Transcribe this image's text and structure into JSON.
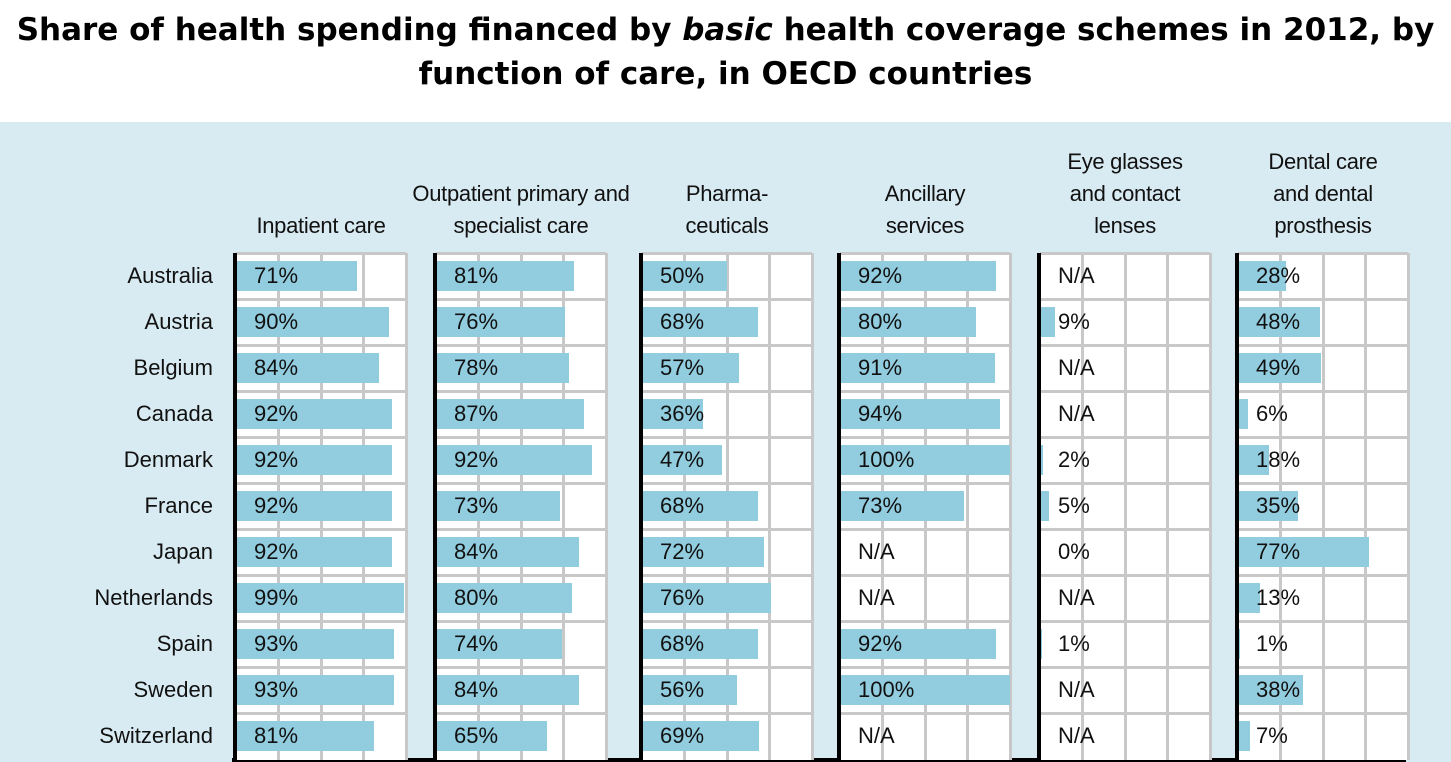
{
  "title": {
    "before": "Share of health spending financed by ",
    "emph": "basic",
    "after": " health coverage schemes in 2012, by function of care, in OECD countries"
  },
  "chart_data": {
    "type": "bar",
    "orientation": "horizontal",
    "title": "Share of health spending financed by basic health coverage schemes in 2012, by function of care, in OECD countries",
    "categories": [
      "Australia",
      "Austria",
      "Belgium",
      "Canada",
      "Denmark",
      "France",
      "Japan",
      "Netherlands",
      "Spain",
      "Sweden",
      "Switzerland"
    ],
    "na_label": "N/A",
    "unit": "%",
    "xlim": [
      0,
      100
    ],
    "grid": true,
    "bar_color": "#92cddf",
    "background_color": "#d9ebf2",
    "series": [
      {
        "name": "Inpatient care",
        "values": [
          71,
          90,
          84,
          92,
          92,
          92,
          92,
          99,
          93,
          93,
          81
        ]
      },
      {
        "name": "Outpatient primary and\nspecialist care",
        "values": [
          81,
          76,
          78,
          87,
          92,
          73,
          84,
          80,
          74,
          84,
          65
        ]
      },
      {
        "name": "Pharma-\nceuticals",
        "values": [
          50,
          68,
          57,
          36,
          47,
          68,
          72,
          76,
          68,
          56,
          69
        ]
      },
      {
        "name": "Ancillary\nservices",
        "values": [
          92,
          80,
          91,
          94,
          100,
          73,
          null,
          null,
          92,
          100,
          null
        ]
      },
      {
        "name": "Eye glasses\nand contact\nlenses",
        "values": [
          null,
          9,
          null,
          null,
          2,
          5,
          0,
          null,
          1,
          null,
          null
        ]
      },
      {
        "name": "Dental care\nand dental\nprosthesis",
        "values": [
          28,
          48,
          49,
          6,
          18,
          35,
          77,
          13,
          1,
          38,
          7
        ]
      }
    ]
  }
}
